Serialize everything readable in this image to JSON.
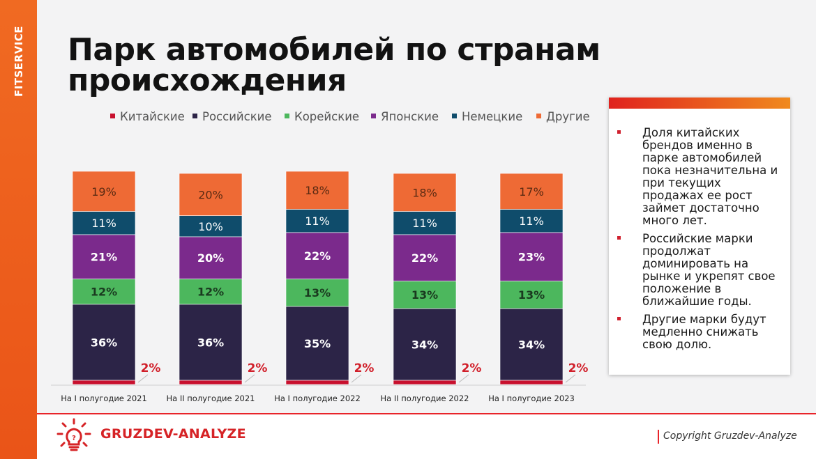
{
  "brand_vertical": "FITSERVICE",
  "title": {
    "line1": "Парк автомобилей по странам",
    "line2": "происхождения"
  },
  "chart_data": {
    "type": "bar",
    "stacked": true,
    "categories": [
      "На I полугодие 2021",
      "На II полугодие 2021",
      "На I полугодие 2022",
      "На II полугодие 2022",
      "На I полугодие 2023"
    ],
    "series": [
      {
        "name": "Китайские",
        "color": "#c8102e",
        "values": [
          2,
          2,
          2,
          2,
          2
        ],
        "labels": [
          "2%",
          "2%",
          "2%",
          "2%",
          "2%"
        ]
      },
      {
        "name": "Российские",
        "color": "#2c2447",
        "values": [
          36,
          36,
          35,
          34,
          34
        ],
        "labels": [
          "36%",
          "36%",
          "35%",
          "34%",
          "34%"
        ]
      },
      {
        "name": "Корейские",
        "color": "#4cb75d",
        "values": [
          12,
          12,
          13,
          13,
          13
        ],
        "labels": [
          "12%",
          "12%",
          "13%",
          "13%",
          "13%"
        ]
      },
      {
        "name": "Японские",
        "color": "#7b2a8c",
        "values": [
          21,
          20,
          22,
          22,
          23
        ],
        "labels": [
          "21%",
          "20%",
          "22%",
          "22%",
          "23%"
        ]
      },
      {
        "name": "Немецкие",
        "color": "#0f4c6b",
        "values": [
          11,
          10,
          11,
          11,
          11
        ],
        "labels": [
          "11%",
          "10%",
          "11%",
          "11%",
          "11%"
        ]
      },
      {
        "name": "Другие",
        "color": "#ee6a35",
        "values": [
          19,
          20,
          18,
          18,
          17
        ],
        "labels": [
          "19%",
          "20%",
          "18%",
          "18%",
          "17%"
        ]
      }
    ],
    "legend_position": "top",
    "grid": false
  },
  "info": {
    "items": [
      "Доля китайских брендов именно в парке автомобилей пока незначительна и при текущих продажах ее рост займет достаточно много лет.",
      "Российские марки продолжат доминировать на рынке и укрепят свое положение в ближайшие годы.",
      "Другие марки будут медленно снижать свою долю."
    ]
  },
  "footer": {
    "logo_text": "GRUZDEV-ANALYZE",
    "copyright": "Copyright Gruzdev-Analyze"
  },
  "colors": {
    "accent": "#e8242a",
    "stripe": "#ee5a1c"
  }
}
